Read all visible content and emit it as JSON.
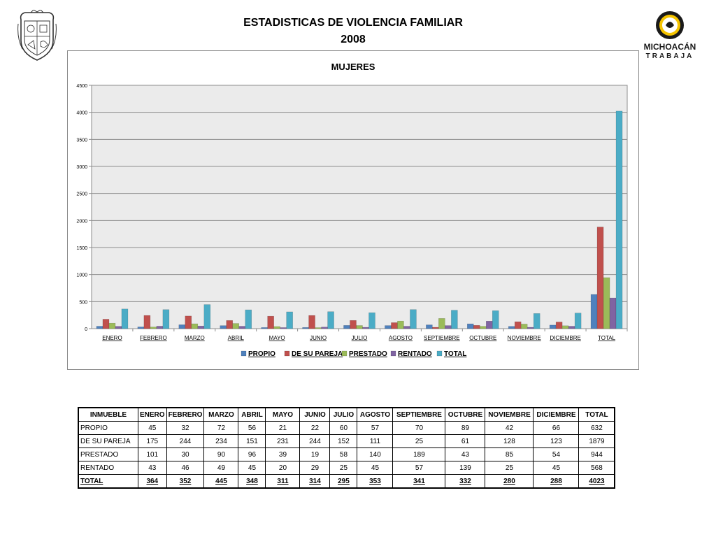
{
  "header": {
    "title_line1": "ESTADISTICAS DE VIOLENCIA FAMILIAR",
    "title_line2": "2008"
  },
  "logo": {
    "line1": "MICHOACÁN",
    "line2": "TRABAJA"
  },
  "colors": {
    "propio": "#4f81bd",
    "de_su_pareja": "#c0504d",
    "prestado": "#9bbb59",
    "rentado": "#8064a2",
    "total": "#4bacc6",
    "plot_bg": "#ebebeb",
    "logo_gold": "#f5c400"
  },
  "chart_data": {
    "type": "bar",
    "title": "MUJERES",
    "categories": [
      "ENERO",
      "FEBRERO",
      "MARZO",
      "ABRIL",
      "MAYO",
      "JUNIO",
      "JULIO",
      "AGOSTO",
      "SEPTIEMBRE",
      "OCTUBRE",
      "NOVIEMBRE",
      "DICIEMBRE",
      "TOTAL"
    ],
    "series": [
      {
        "name": "PROPIO",
        "values": [
          45,
          32,
          72,
          56,
          21,
          22,
          60,
          57,
          70,
          89,
          42,
          66,
          632
        ]
      },
      {
        "name": "DE SU PAREJA",
        "values": [
          175,
          244,
          234,
          151,
          231,
          244,
          152,
          111,
          25,
          61,
          128,
          123,
          1879
        ]
      },
      {
        "name": "PRESTADO",
        "values": [
          101,
          30,
          90,
          96,
          39,
          19,
          58,
          140,
          189,
          43,
          85,
          54,
          944
        ]
      },
      {
        "name": "RENTADO",
        "values": [
          43,
          46,
          49,
          45,
          20,
          29,
          25,
          45,
          57,
          139,
          25,
          45,
          568
        ]
      },
      {
        "name": "TOTAL",
        "values": [
          364,
          352,
          445,
          348,
          311,
          314,
          295,
          353,
          341,
          332,
          280,
          288,
          4023
        ]
      }
    ],
    "ylim": [
      0,
      4500
    ],
    "yticks": [
      0,
      500,
      1000,
      1500,
      2000,
      2500,
      3000,
      3500,
      4000,
      4500
    ],
    "grid": true,
    "legend_position": "bottom"
  },
  "table": {
    "headers": [
      "INMUEBLE",
      "ENERO",
      "FEBRERO",
      "MARZO",
      "ABRIL",
      "MAYO",
      "JUNIO",
      "JULIO",
      "AGOSTO",
      "SEPTIEMBRE",
      "OCTUBRE",
      "NOVIEMBRE",
      "DICIEMBRE",
      "TOTAL"
    ],
    "rows": [
      {
        "label": "PROPIO",
        "values": [
          "45",
          "32",
          "72",
          "56",
          "21",
          "22",
          "60",
          "57",
          "70",
          "89",
          "42",
          "66",
          "632"
        ]
      },
      {
        "label": "DE SU PAREJA",
        "values": [
          "175",
          "244",
          "234",
          "151",
          "231",
          "244",
          "152",
          "111",
          "25",
          "61",
          "128",
          "123",
          "1879"
        ]
      },
      {
        "label": "PRESTADO",
        "values": [
          "101",
          "30",
          "90",
          "96",
          "39",
          "19",
          "58",
          "140",
          "189",
          "43",
          "85",
          "54",
          "944"
        ]
      },
      {
        "label": "RENTADO",
        "values": [
          "43",
          "46",
          "49",
          "45",
          "20",
          "29",
          "25",
          "45",
          "57",
          "139",
          "25",
          "45",
          "568"
        ]
      }
    ],
    "total_row": {
      "label": "TOTAL",
      "values": [
        "364",
        "352",
        "445",
        "348",
        "311",
        "314",
        "295",
        "353",
        "341",
        "332",
        "280",
        "288",
        "4023"
      ]
    }
  }
}
